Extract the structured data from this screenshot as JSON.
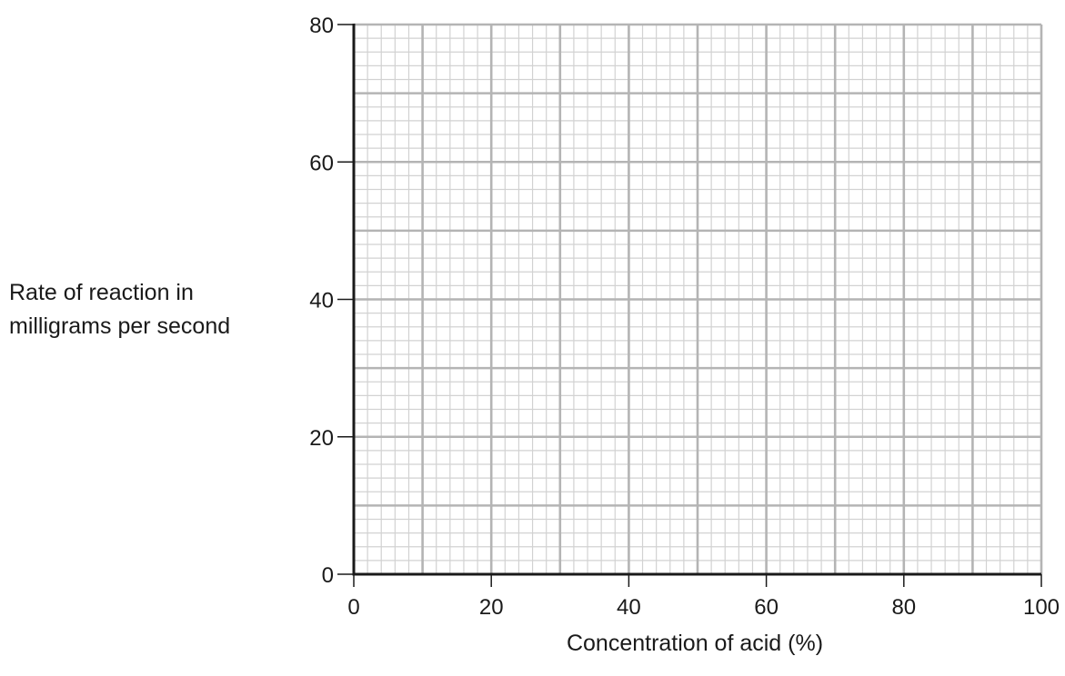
{
  "chart_data": {
    "type": "scatter",
    "title": "",
    "xlabel": "Concentration of acid (%)",
    "ylabel_lines": [
      "Rate of reaction in",
      "milligrams per second"
    ],
    "xlim": [
      0,
      100
    ],
    "ylim": [
      0,
      80
    ],
    "x_ticks": [
      0,
      20,
      40,
      60,
      80,
      100
    ],
    "y_ticks": [
      0,
      20,
      40,
      60,
      80
    ],
    "x_major_grid_step": 10,
    "y_major_grid_step": 10,
    "x_minor_grid_step": 2,
    "y_minor_grid_step": 2,
    "grid": true,
    "series": [],
    "colors": {
      "axis": "#1a1a1a",
      "major_grid": "#b4b4b4",
      "minor_grid": "#d2d2d2",
      "text": "#1a1a1a"
    }
  }
}
